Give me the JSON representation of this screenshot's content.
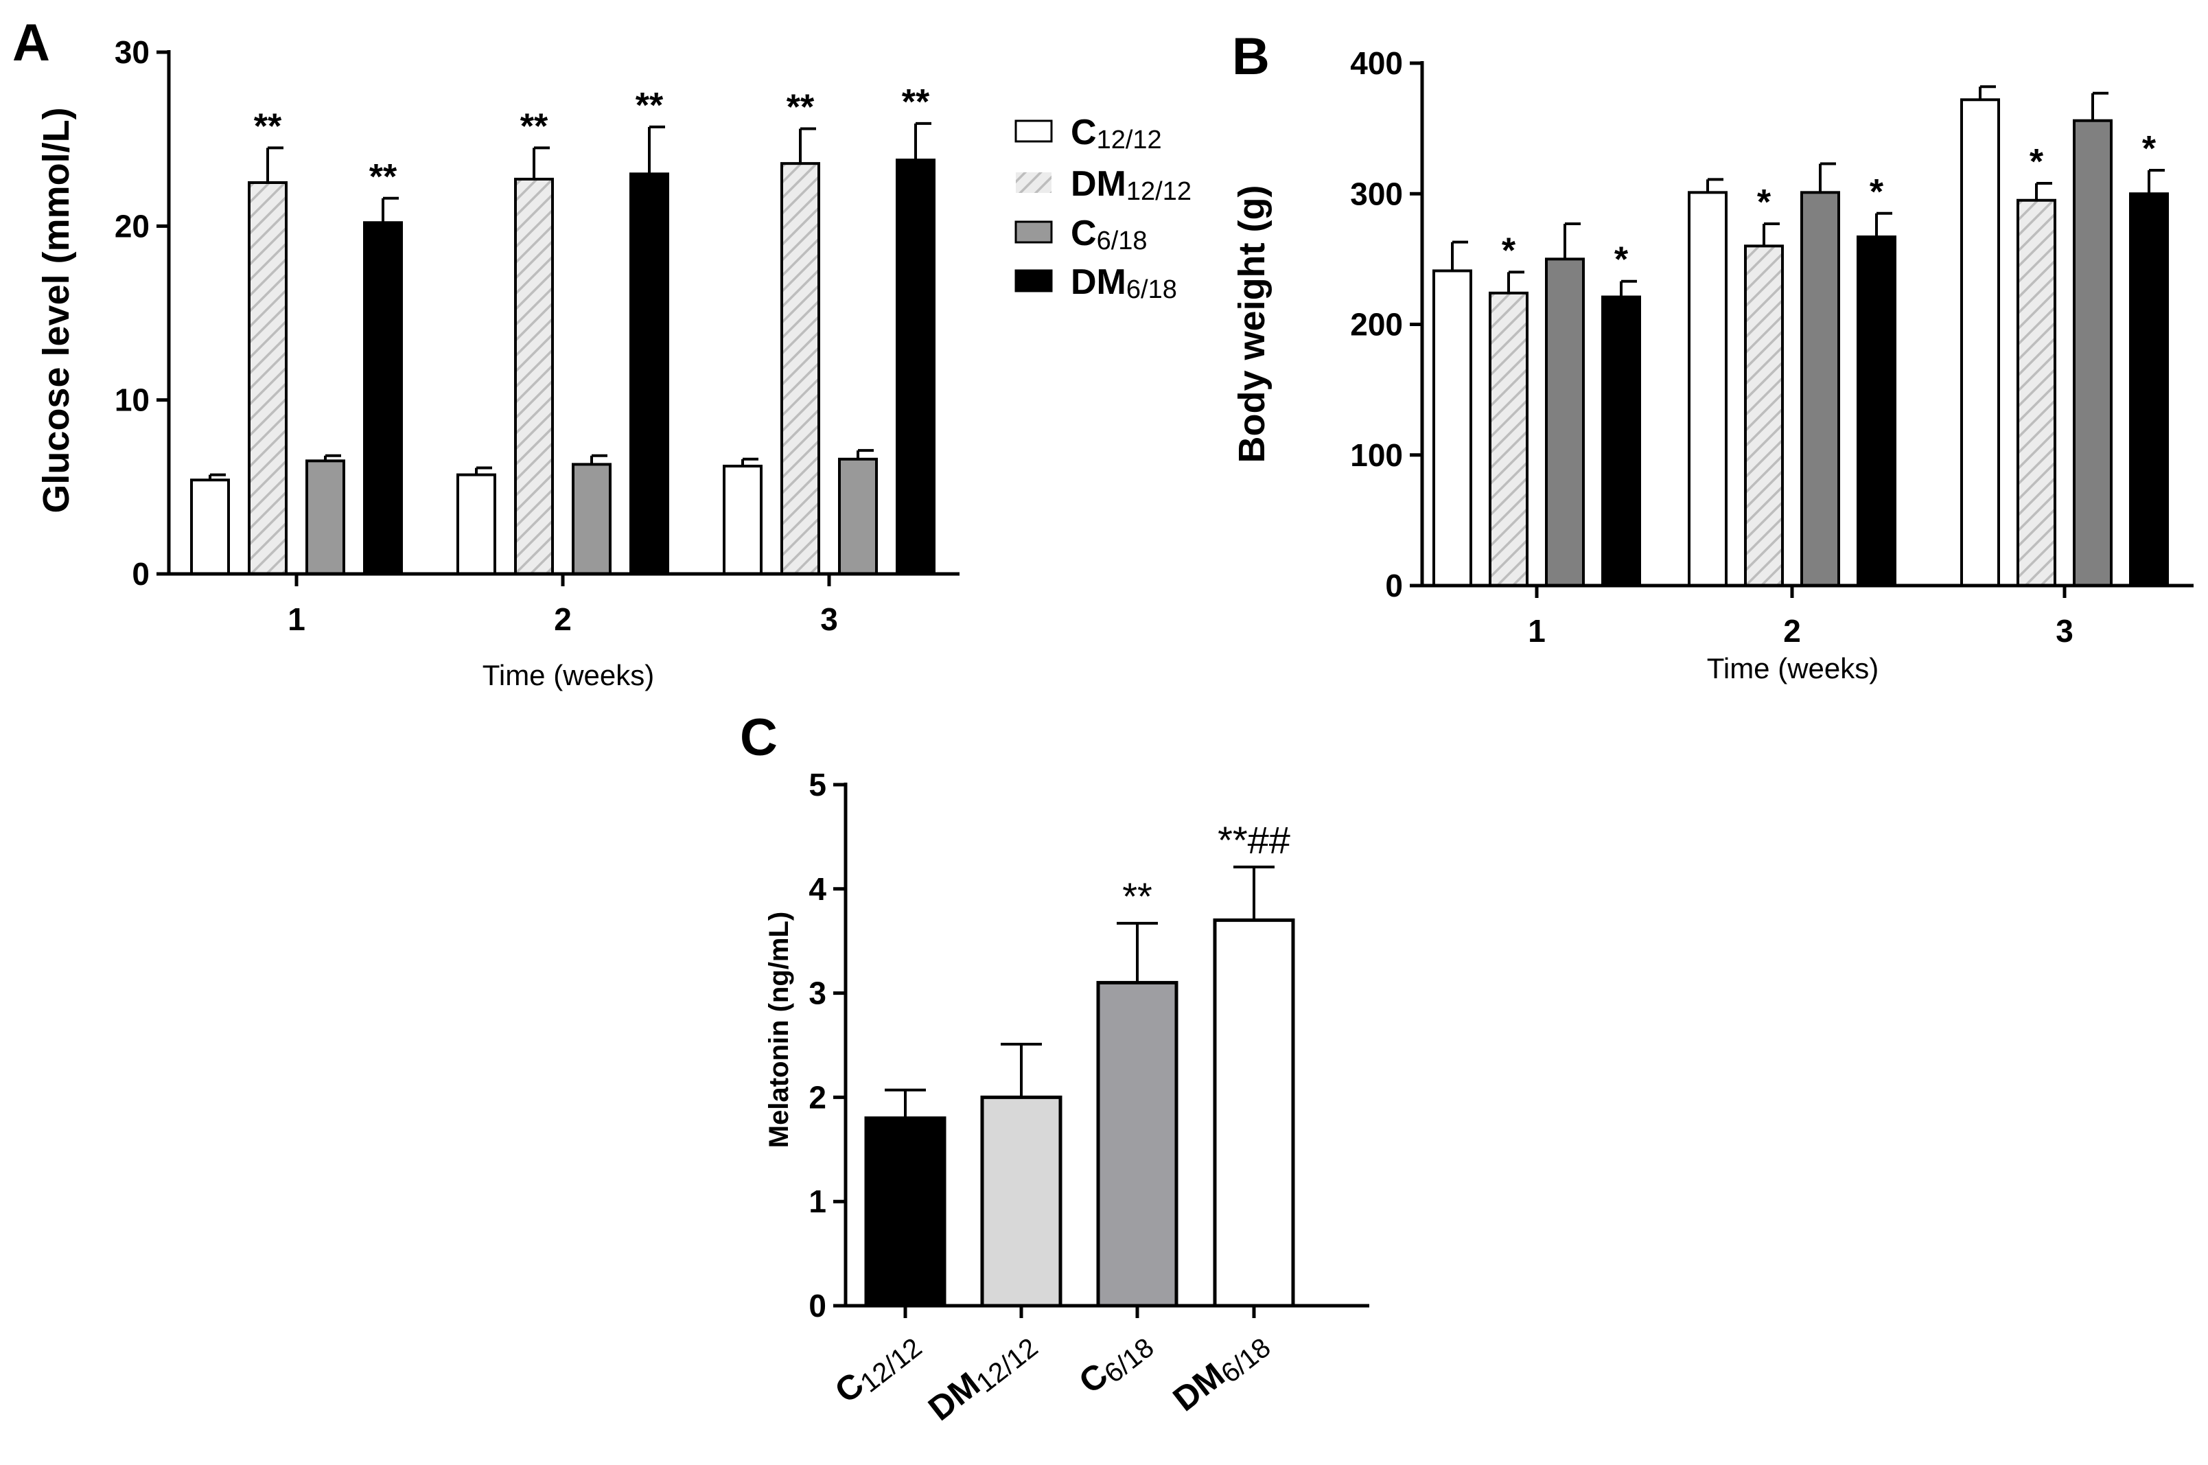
{
  "chart_data": [
    {
      "panel": "A",
      "type": "bar",
      "xlabel": "Time (weeks)",
      "ylabel": "Glucose level (mmol/L)",
      "ylim": [
        0,
        30
      ],
      "yticks": [
        0,
        10,
        20,
        30
      ],
      "categories": [
        "1",
        "2",
        "3"
      ],
      "series": [
        {
          "name": "C",
          "sub": "12/12",
          "fill": "#ffffff",
          "pattern": "none",
          "values": [
            5.4,
            5.7,
            6.2
          ],
          "errors": [
            0.3,
            0.4,
            0.4
          ],
          "sig": [
            "",
            "",
            ""
          ]
        },
        {
          "name": "DM",
          "sub": "12/12",
          "fill": "#e6e6e6",
          "pattern": "hatch",
          "values": [
            22.5,
            22.7,
            23.6
          ],
          "errors": [
            2.0,
            1.8,
            2.0
          ],
          "sig": [
            "**",
            "**",
            "**"
          ]
        },
        {
          "name": "C",
          "sub": "6/18",
          "fill": "#999999",
          "pattern": "none",
          "values": [
            6.5,
            6.3,
            6.6
          ],
          "errors": [
            0.3,
            0.5,
            0.5
          ],
          "sig": [
            "",
            "",
            ""
          ]
        },
        {
          "name": "DM",
          "sub": "6/18",
          "fill": "#000000",
          "pattern": "none",
          "values": [
            20.2,
            23.0,
            23.8
          ],
          "errors": [
            1.4,
            2.7,
            2.1
          ],
          "sig": [
            "**",
            "**",
            "**"
          ]
        }
      ]
    },
    {
      "panel": "B",
      "type": "bar",
      "xlabel": "Time (weeks)",
      "ylabel": "Body weight (g)",
      "ylim": [
        0,
        400
      ],
      "yticks": [
        0,
        100,
        200,
        300,
        400
      ],
      "categories": [
        "1",
        "2",
        "3"
      ],
      "series": [
        {
          "name": "C",
          "sub": "12/12",
          "fill": "#ffffff",
          "pattern": "none",
          "values": [
            241,
            301,
            372
          ],
          "errors": [
            22,
            10,
            10
          ],
          "sig": [
            "",
            "",
            ""
          ]
        },
        {
          "name": "DM",
          "sub": "12/12",
          "fill": "#e6e6e6",
          "pattern": "hatch",
          "values": [
            224,
            260,
            295
          ],
          "errors": [
            16,
            17,
            13
          ],
          "sig": [
            "*",
            "*",
            "*"
          ]
        },
        {
          "name": "C",
          "sub": "6/18",
          "fill": "#808080",
          "pattern": "none",
          "values": [
            250,
            301,
            356
          ],
          "errors": [
            27,
            22,
            21
          ],
          "sig": [
            "",
            "",
            ""
          ]
        },
        {
          "name": "DM",
          "sub": "6/18",
          "fill": "#000000",
          "pattern": "none",
          "values": [
            221,
            267,
            300
          ],
          "errors": [
            12,
            18,
            18
          ],
          "sig": [
            "*",
            "*",
            "*"
          ]
        }
      ]
    },
    {
      "panel": "C",
      "type": "bar",
      "xlabel": "",
      "ylabel": "Melatonin (ng/mL)",
      "ylim": [
        0,
        5
      ],
      "yticks": [
        0,
        1,
        2,
        3,
        4,
        5
      ],
      "categories": [
        {
          "name": "C",
          "sub": "12/12"
        },
        {
          "name": "DM",
          "sub": "12/12"
        },
        {
          "name": "C",
          "sub": "6/18"
        },
        {
          "name": "DM",
          "sub": "6/18"
        }
      ],
      "values": [
        1.8,
        2.0,
        3.1,
        3.7
      ],
      "errors": [
        0.27,
        0.51,
        0.57,
        0.51
      ],
      "fills": [
        "#000000",
        "#d8d8d8",
        "#9e9ea2",
        "#ffffff"
      ],
      "sig": [
        "",
        "",
        "**",
        "**##"
      ]
    }
  ],
  "legend": {
    "items": [
      {
        "name": "C",
        "sub": "12/12",
        "fill": "#ffffff",
        "pattern": "none"
      },
      {
        "name": "DM",
        "sub": "12/12",
        "fill": "#e6e6e6",
        "pattern": "hatch"
      },
      {
        "name": "C",
        "sub": "6/18",
        "fill": "#999999",
        "pattern": "none"
      },
      {
        "name": "DM",
        "sub": "6/18",
        "fill": "#000000",
        "pattern": "none"
      }
    ]
  }
}
